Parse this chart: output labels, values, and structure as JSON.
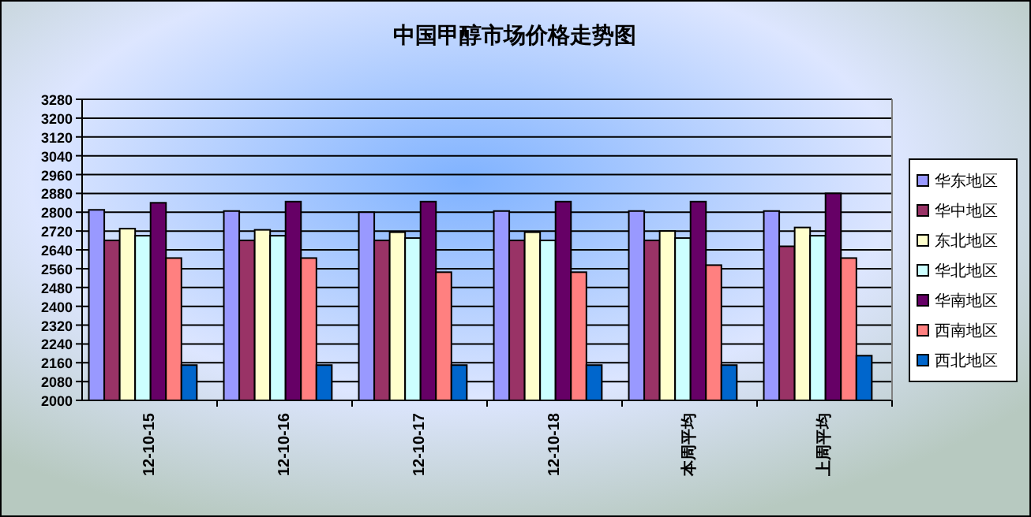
{
  "chart_data": {
    "type": "bar",
    "title": "中国甲醇市场价格走势图",
    "categories": [
      "12-10-15",
      "12-10-16",
      "12-10-17",
      "12-10-18",
      "本周平均",
      "上周平均"
    ],
    "series": [
      {
        "name": "华东地区",
        "color": "#9999ff",
        "values": [
          2810,
          2805,
          2800,
          2805,
          2805,
          2805
        ]
      },
      {
        "name": "华中地区",
        "color": "#993366",
        "values": [
          2680,
          2680,
          2680,
          2680,
          2680,
          2655
        ]
      },
      {
        "name": "东北地区",
        "color": "#ffffcc",
        "values": [
          2730,
          2725,
          2715,
          2715,
          2720,
          2735
        ]
      },
      {
        "name": "华北地区",
        "color": "#ccffff",
        "values": [
          2700,
          2700,
          2690,
          2680,
          2690,
          2700
        ]
      },
      {
        "name": "华南地区",
        "color": "#660066",
        "values": [
          2840,
          2845,
          2845,
          2845,
          2845,
          2880
        ]
      },
      {
        "name": "西南地区",
        "color": "#ff8080",
        "values": [
          2605,
          2605,
          2545,
          2545,
          2575,
          2605
        ]
      },
      {
        "name": "西北地区",
        "color": "#0066cc",
        "values": [
          2150,
          2150,
          2150,
          2150,
          2150,
          2190
        ]
      }
    ],
    "ylim": [
      2000,
      3280
    ],
    "yticks": [
      2000,
      2080,
      2160,
      2240,
      2320,
      2400,
      2480,
      2560,
      2640,
      2720,
      2800,
      2880,
      2960,
      3040,
      3120,
      3200,
      3280
    ],
    "grid": "y",
    "legend": "right"
  }
}
